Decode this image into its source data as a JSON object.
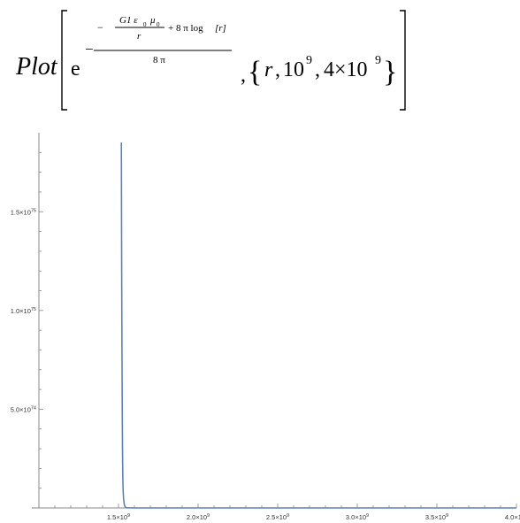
{
  "formula": {
    "head": "Plot",
    "e_symbol": "e",
    "minus": "−",
    "inner_num": "G1 ε",
    "eps_sub": "0",
    "mu": "μ",
    "mu_sub": "0",
    "inner_den": "r",
    "plus_term": "+ 8 π log",
    "log_arg": "[r]",
    "outer_den": "8 π",
    "comma": ",",
    "lbrace": "{",
    "rbrace": "}",
    "var": "r",
    "sep1": ",",
    "lo_base": "10",
    "lo_exp": "9",
    "sep2": ",",
    "hi_coef": "4×10",
    "hi_exp": "9"
  },
  "chart_data": {
    "type": "line",
    "title": "",
    "xlabel": "",
    "ylabel": "",
    "xlim": [
      1000000000.0,
      4000000000.0
    ],
    "ylim": [
      0,
      1.9e+75
    ],
    "x_ticks": [
      {
        "value": 1500000000.0,
        "mantissa": "1.5×10",
        "exp": "9"
      },
      {
        "value": 2000000000.0,
        "mantissa": "2.0×10",
        "exp": "9"
      },
      {
        "value": 2500000000.0,
        "mantissa": "2.5×10",
        "exp": "9"
      },
      {
        "value": 3000000000.0,
        "mantissa": "3.0×10",
        "exp": "9"
      },
      {
        "value": 3500000000.0,
        "mantissa": "3.5×10",
        "exp": "9"
      },
      {
        "value": 4000000000.0,
        "mantissa": "4.0×10",
        "exp": "9"
      }
    ],
    "y_ticks": [
      {
        "value": 5e+74,
        "mantissa": "5.0×10",
        "exp": "74"
      },
      {
        "value": 1e+75,
        "mantissa": "1.0×10",
        "exp": "75"
      },
      {
        "value": 1.5e+75,
        "mantissa": "1.5×10",
        "exp": "75"
      }
    ],
    "series": [
      {
        "color": "#5e81b5",
        "points": [
          [
            1518000000.0,
            1.85e+75
          ],
          [
            1519000000.0,
            1.5e+75
          ],
          [
            1520000000.0,
            1.2e+75
          ],
          [
            1521000000.0,
            9.5e+74
          ],
          [
            1522000000.0,
            7.5e+74
          ],
          [
            1523000000.0,
            5.8e+74
          ],
          [
            1524000000.0,
            4.4e+74
          ],
          [
            1525000000.0,
            3.2e+74
          ],
          [
            1526000000.0,
            2.3e+74
          ],
          [
            1527000000.0,
            1.6e+74
          ],
          [
            1529000000.0,
            9e+73
          ],
          [
            1532000000.0,
            4.5e+73
          ],
          [
            1536000000.0,
            1.8e+73
          ],
          [
            1542000000.0,
            5e+72
          ],
          [
            1550000000.0,
            1e+72
          ],
          [
            1600000000.0,
            0
          ],
          [
            4000000000.0,
            0
          ]
        ]
      }
    ]
  }
}
